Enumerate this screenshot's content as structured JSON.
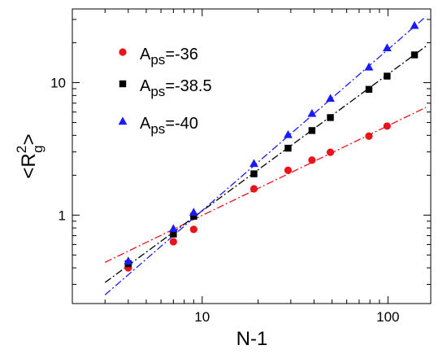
{
  "chart_data": {
    "type": "scatter",
    "title": "",
    "xlabel": "N-1",
    "ylabel_main": "<R",
    "ylabel_sup": "2",
    "ylabel_sub": "g",
    "ylabel_close": ">",
    "xscale": "log",
    "yscale": "log",
    "xlim": [
      2.0,
      170
    ],
    "ylim": [
      0.215,
      36
    ],
    "x_ticks": [
      {
        "value": 10,
        "label": "10"
      },
      {
        "value": 100,
        "label": "100"
      }
    ],
    "y_ticks": [
      {
        "value": 1,
        "label": "1"
      },
      {
        "value": 10,
        "label": "10"
      }
    ],
    "grid": false,
    "legend_position": "top-left",
    "series": [
      {
        "name_main": "A",
        "name_sub": "ps",
        "name_value": "=-36",
        "marker": "circle",
        "color": "#e8141c",
        "x": [
          4,
          7,
          9,
          19,
          29,
          39,
          49,
          79,
          99
        ],
        "y": [
          0.4,
          0.63,
          0.78,
          1.58,
          2.18,
          2.6,
          2.98,
          3.95,
          4.7
        ],
        "fit_x": [
          3,
          160
        ],
        "fit_y": [
          0.44,
          6.5
        ]
      },
      {
        "name_main": "A",
        "name_sub": "ps",
        "name_value": "=-38.5",
        "marker": "square",
        "color": "#000000",
        "x": [
          4,
          7,
          9,
          19,
          29,
          39,
          49,
          79,
          99,
          139
        ],
        "y": [
          0.43,
          0.72,
          0.98,
          2.05,
          3.2,
          4.35,
          5.45,
          8.9,
          11.2,
          16.2
        ],
        "fit_x": [
          3,
          160
        ],
        "fit_y": [
          0.31,
          18.8
        ]
      },
      {
        "name_main": "A",
        "name_sub": "ps",
        "name_value": "=-40",
        "marker": "triangle",
        "color": "#1a1aff",
        "x": [
          4,
          7,
          9,
          19,
          29,
          39,
          49,
          79,
          99,
          139
        ],
        "y": [
          0.45,
          0.79,
          1.05,
          2.45,
          4.05,
          5.85,
          7.6,
          13.1,
          18.3,
          27.0
        ],
        "fit_x": [
          3,
          160
        ],
        "fit_y": [
          0.25,
          31.5
        ]
      }
    ]
  }
}
